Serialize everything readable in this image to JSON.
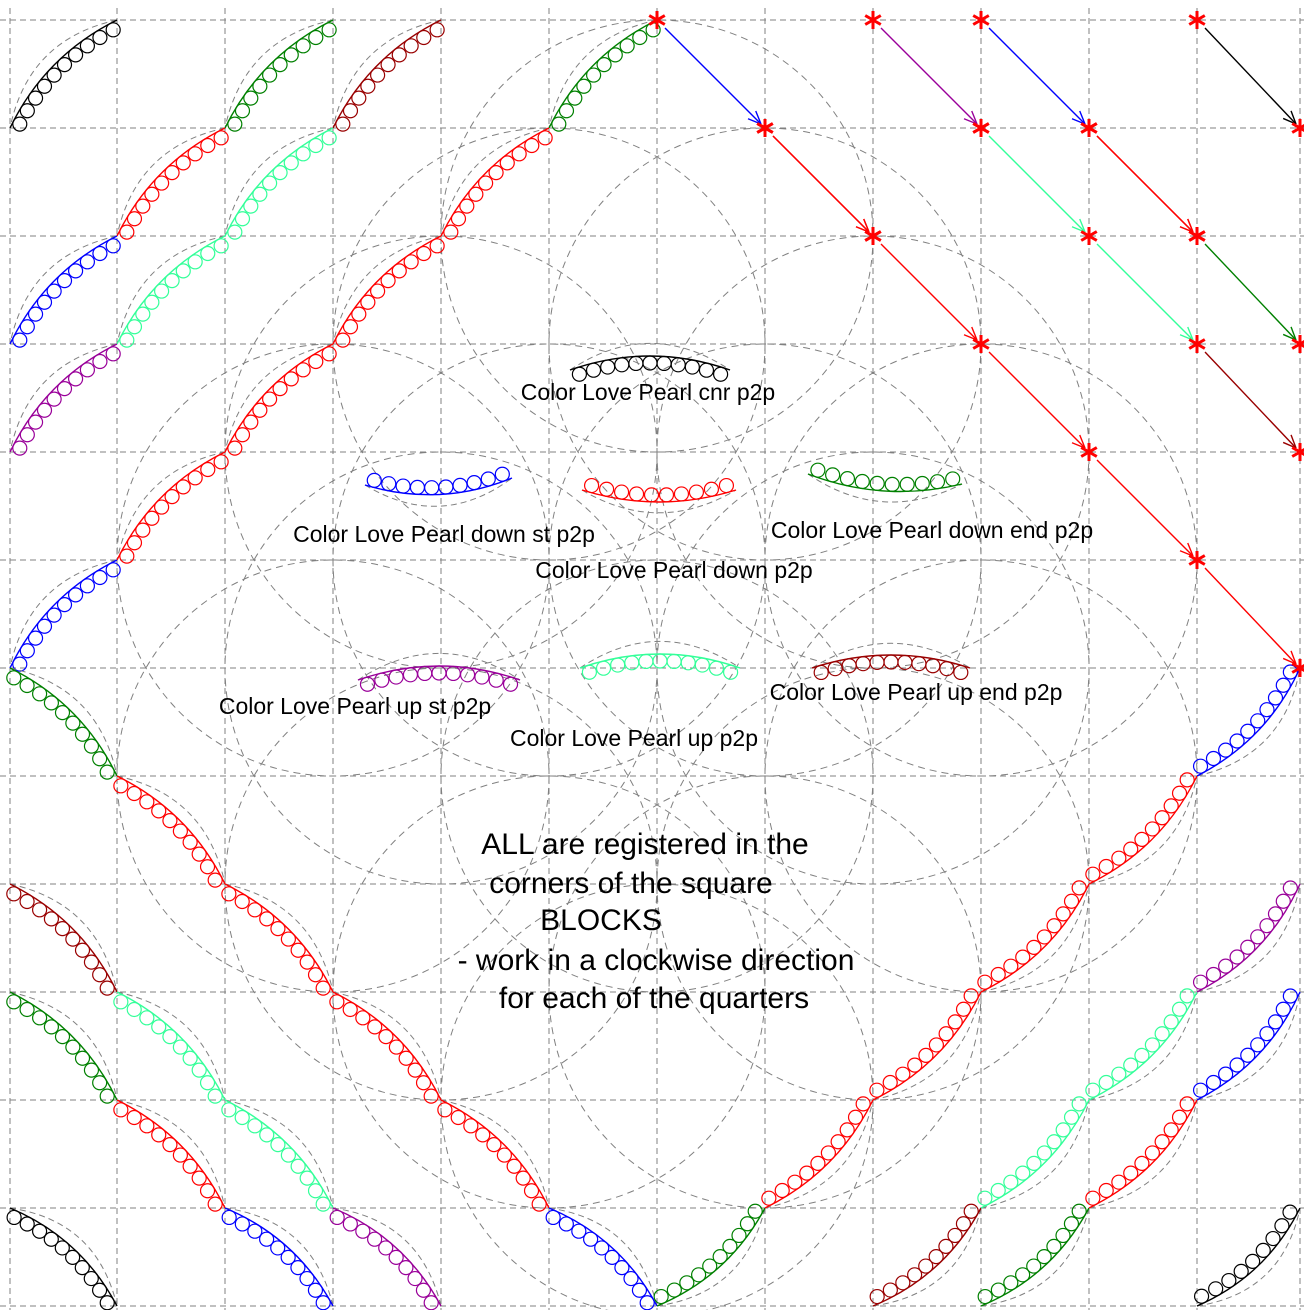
{
  "legend": {
    "cnr": {
      "label": "Color Love Pearl cnr p2p",
      "color": "#000000"
    },
    "down_st": {
      "label": "Color Love Pearl down st p2p",
      "color": "#0000ff"
    },
    "down": {
      "label": "Color Love Pearl down p2p",
      "color": "#ff0000"
    },
    "down_end": {
      "label": "Color Love Pearl down end p2p",
      "color": "#008000"
    },
    "up_st": {
      "label": "Color Love Pearl up st p2p",
      "color": "#990099"
    },
    "up": {
      "label": "Color Love Pearl up p2p",
      "color": "#33ff99"
    },
    "up_end": {
      "label": "Color Love Pearl up end p2p",
      "color": "#990000"
    }
  },
  "note": {
    "line1": "ALL are registered in the",
    "line2": "corners of the square",
    "line3": "BLOCKS",
    "line4": "- work in a clockwise direction",
    "line5": "for each of the quarters"
  },
  "colors": {
    "grid": "#808080",
    "marker": "#ff0000",
    "arrow_seq": [
      "#0000ff",
      "#ff0000",
      "#ff0000",
      "#ff0000",
      "#ff0000",
      "#ff0000",
      "#008000"
    ]
  },
  "icons": {
    "marker": "red-asterisk-icon",
    "arrow": "arrow-icon",
    "pearl": "pearl-circle-icon"
  }
}
